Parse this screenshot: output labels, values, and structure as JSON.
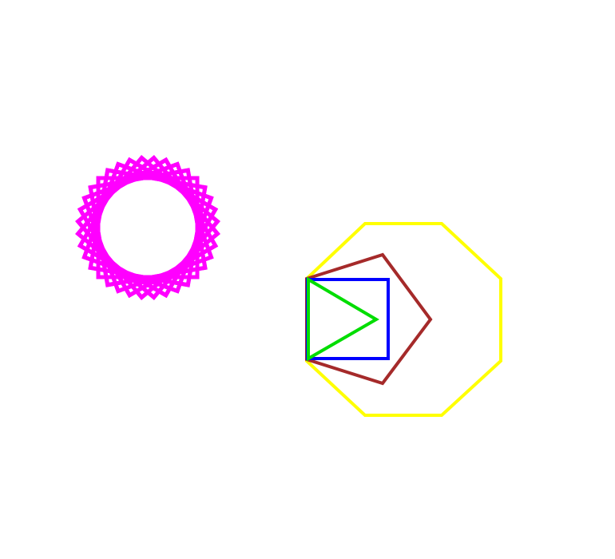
{
  "drawing": {
    "rosette": {
      "shape": "square",
      "copies": 18,
      "rotation_step_degrees": 10,
      "stroke_color": "#ff00ff"
    },
    "nested_polygons": [
      {
        "name": "octagon",
        "sides": 8,
        "stroke_color": "#ffff00"
      },
      {
        "name": "pentagon",
        "sides": 5,
        "stroke_color": "#a52a2a"
      },
      {
        "name": "square",
        "sides": 4,
        "stroke_color": "#0000ff"
      },
      {
        "name": "triangle",
        "sides": 3,
        "stroke_color": "#00dd00"
      }
    ]
  }
}
